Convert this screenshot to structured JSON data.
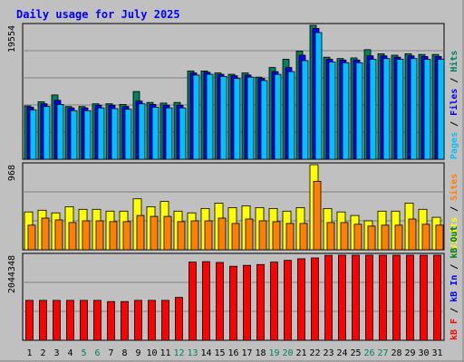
{
  "colors": {
    "background": "#c0c0c0",
    "title": "#0000ff",
    "hits": "#00805c",
    "files": "#0000ff",
    "pages": "#00c0ff",
    "visits": "#ffff00",
    "sites": "#ff8000",
    "kbin": "#0000ff",
    "kbout": "#008000",
    "kbf": "#ff0000",
    "weekend_label": "#00805c",
    "weekday_label": "#000000"
  },
  "chart_data": {
    "type": "bar",
    "title": "Daily usage for July 2025",
    "categories": [
      "1",
      "2",
      "3",
      "4",
      "5",
      "6",
      "7",
      "8",
      "9",
      "10",
      "11",
      "12",
      "13",
      "14",
      "15",
      "16",
      "17",
      "18",
      "19",
      "20",
      "21",
      "22",
      "23",
      "24",
      "25",
      "26",
      "27",
      "28",
      "29",
      "30",
      "31"
    ],
    "weekend_days": [
      "5",
      "6",
      "12",
      "13",
      "19",
      "20",
      "26",
      "27"
    ],
    "panels": [
      {
        "id": "requests",
        "max_label": "19554",
        "ymax": 19554,
        "legend": [
          {
            "label": "Pages",
            "color": "#00c0ff"
          },
          {
            "label": "Files",
            "color": "#0000ff"
          },
          {
            "label": "Hits",
            "color": "#00805c"
          }
        ],
        "series": [
          {
            "name": "Hits",
            "values": [
              7800,
              8400,
              9400,
              7700,
              7700,
              8100,
              8100,
              8000,
              9900,
              8300,
              8200,
              8300,
              12900,
              12900,
              12600,
              12400,
              12600,
              12000,
              13400,
              14600,
              15800,
              19554,
              14900,
              14700,
              14800,
              16000,
              15400,
              15200,
              15400,
              15300,
              15300
            ]
          },
          {
            "name": "Files",
            "values": [
              7600,
              8100,
              8600,
              7500,
              7500,
              7900,
              7900,
              7700,
              8500,
              8000,
              7900,
              7900,
              12600,
              12700,
              12400,
              12200,
              12300,
              11800,
              12800,
              13400,
              15200,
              19100,
              14600,
              14500,
              14500,
              15100,
              15100,
              14900,
              15100,
              15000,
              15000
            ]
          },
          {
            "name": "Pages",
            "values": [
              7200,
              7700,
              8000,
              7100,
              7100,
              7500,
              7400,
              7300,
              8100,
              7600,
              7500,
              7500,
              12300,
              12400,
              12100,
              11800,
              12000,
              11500,
              12400,
              12800,
              14400,
              18500,
              14200,
              14100,
              14100,
              14600,
              14700,
              14600,
              14700,
              14600,
              14600
            ]
          }
        ]
      },
      {
        "id": "visitors",
        "max_label": "968",
        "ymax": 968,
        "legend": [
          {
            "label": "Visits",
            "color": "#ffff00"
          },
          {
            "label": "Sites",
            "color": "#ff8000"
          }
        ],
        "series": [
          {
            "name": "Visits",
            "values": [
              430,
              450,
              420,
              490,
              460,
              460,
              440,
              440,
              580,
              490,
              550,
              440,
              420,
              470,
              530,
              480,
              500,
              480,
              470,
              440,
              480,
              968,
              470,
              430,
              390,
              330,
              440,
              440,
              530,
              460,
              370
            ]
          },
          {
            "name": "Sites",
            "values": [
              280,
              360,
              340,
              310,
              330,
              330,
              320,
              320,
              390,
              380,
              380,
              320,
              330,
              330,
              360,
              300,
              350,
              330,
              320,
              300,
              300,
              780,
              310,
              310,
              290,
              270,
              280,
              280,
              350,
              290,
              280
            ]
          }
        ]
      },
      {
        "id": "volume",
        "max_label": "2044348",
        "ymax": 2044348,
        "legend": [
          {
            "label": "kB F",
            "color": "#ff0000"
          },
          {
            "label": "kB In",
            "color": "#0000ff"
          },
          {
            "label": "kB Out",
            "color": "#008000"
          }
        ],
        "series": [
          {
            "name": "kB F",
            "values": [
              960000,
              960000,
              960000,
              960000,
              960000,
              960000,
              930000,
              930000,
              960000,
              960000,
              960000,
              1030000,
              1880000,
              1890000,
              1870000,
              1780000,
              1800000,
              1820000,
              1880000,
              1920000,
              1960000,
              1980000,
              2040000,
              2044348,
              2044348,
              2044348,
              2044348,
              2044348,
              2044348,
              2044348,
              2044348
            ]
          }
        ]
      }
    ]
  }
}
